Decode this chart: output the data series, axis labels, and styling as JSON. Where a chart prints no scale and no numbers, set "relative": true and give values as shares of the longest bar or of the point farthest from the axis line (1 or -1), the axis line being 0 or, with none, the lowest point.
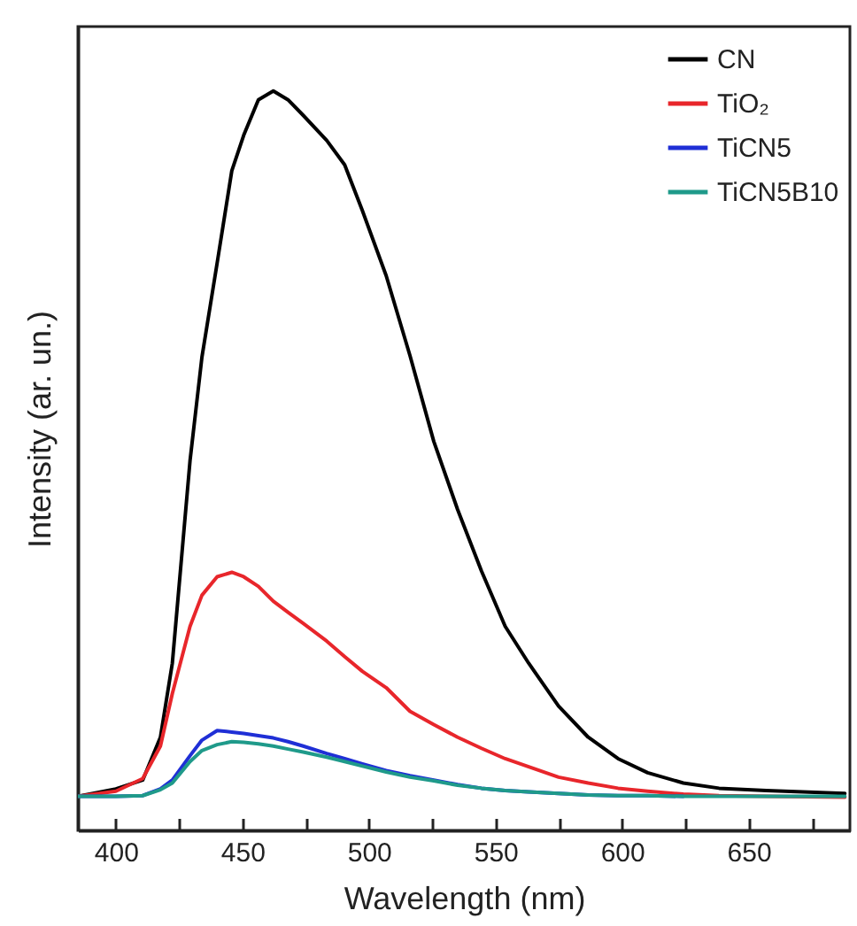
{
  "chart_data": {
    "type": "line",
    "xlabel": "Wavelength  (nm)",
    "ylabel": "Intensity  (ar. un.)",
    "relative": true,
    "xlim": [
      385,
      690
    ],
    "xticks": [
      400,
      {
        "value": 425,
        "label": null
      },
      450,
      {
        "value": 475,
        "label": null
      },
      500,
      {
        "value": 525,
        "label": null
      },
      550,
      {
        "value": 575,
        "label": null
      },
      600,
      {
        "value": 625,
        "label": null
      },
      650,
      {
        "value": 675,
        "label": null
      }
    ],
    "x": [
      385,
      400,
      410.6,
      417.6,
      422.3,
      429.3,
      434,
      440,
      445.8,
      450.5,
      456.3,
      462.2,
      468,
      474,
      483.3,
      490.4,
      497.4,
      506.8,
      516.2,
      525.6,
      535,
      544.4,
      553.8,
      563.1,
      574.9,
      586.6,
      598.4,
      610.1,
      624.2,
      638.3,
      657,
      688
    ],
    "legend": "top right",
    "line_style": "solid",
    "marker": "none",
    "grid": false,
    "series": [
      {
        "name": "CN",
        "color": "#000000",
        "values": [
          0.046,
          0.056,
          0.068,
          0.126,
          0.226,
          0.5,
          0.64,
          0.767,
          0.892,
          0.94,
          0.988,
          1.0,
          0.988,
          0.967,
          0.933,
          0.9,
          0.838,
          0.75,
          0.642,
          0.526,
          0.434,
          0.351,
          0.276,
          0.226,
          0.168,
          0.126,
          0.097,
          0.078,
          0.064,
          0.057,
          0.054,
          0.05
        ]
      },
      {
        "name": "TiO₂",
        "color": "#e8262b",
        "values": [
          0.046,
          0.053,
          0.07,
          0.114,
          0.185,
          0.276,
          0.318,
          0.343,
          0.349,
          0.343,
          0.33,
          0.31,
          0.295,
          0.28,
          0.256,
          0.235,
          0.215,
          0.193,
          0.161,
          0.143,
          0.126,
          0.111,
          0.097,
          0.086,
          0.072,
          0.064,
          0.057,
          0.053,
          0.049,
          0.047,
          0.046,
          0.045
        ]
      },
      {
        "name": "TiCN5",
        "color": "#1f2fd6",
        "values": [
          0.046,
          0.046,
          0.047,
          0.056,
          0.068,
          0.101,
          0.122,
          0.135,
          0.133,
          0.131,
          0.128,
          0.125,
          0.12,
          0.114,
          0.104,
          0.097,
          0.09,
          0.081,
          0.074,
          0.068,
          0.062,
          0.057,
          0.054,
          0.052,
          0.05,
          0.048,
          0.047,
          0.047,
          0.046,
          null,
          null,
          null
        ]
      },
      {
        "name": "TiCN5B10",
        "color": "#1f9a8a",
        "values": [
          0.046,
          0.046,
          0.047,
          0.055,
          0.064,
          0.093,
          0.108,
          0.116,
          0.12,
          0.119,
          0.117,
          0.114,
          0.11,
          0.106,
          0.099,
          0.093,
          0.087,
          0.079,
          0.072,
          0.067,
          0.061,
          0.057,
          0.054,
          0.052,
          0.05,
          0.048,
          0.047,
          0.047,
          0.046,
          0.046,
          0.046,
          0.046
        ]
      }
    ]
  }
}
